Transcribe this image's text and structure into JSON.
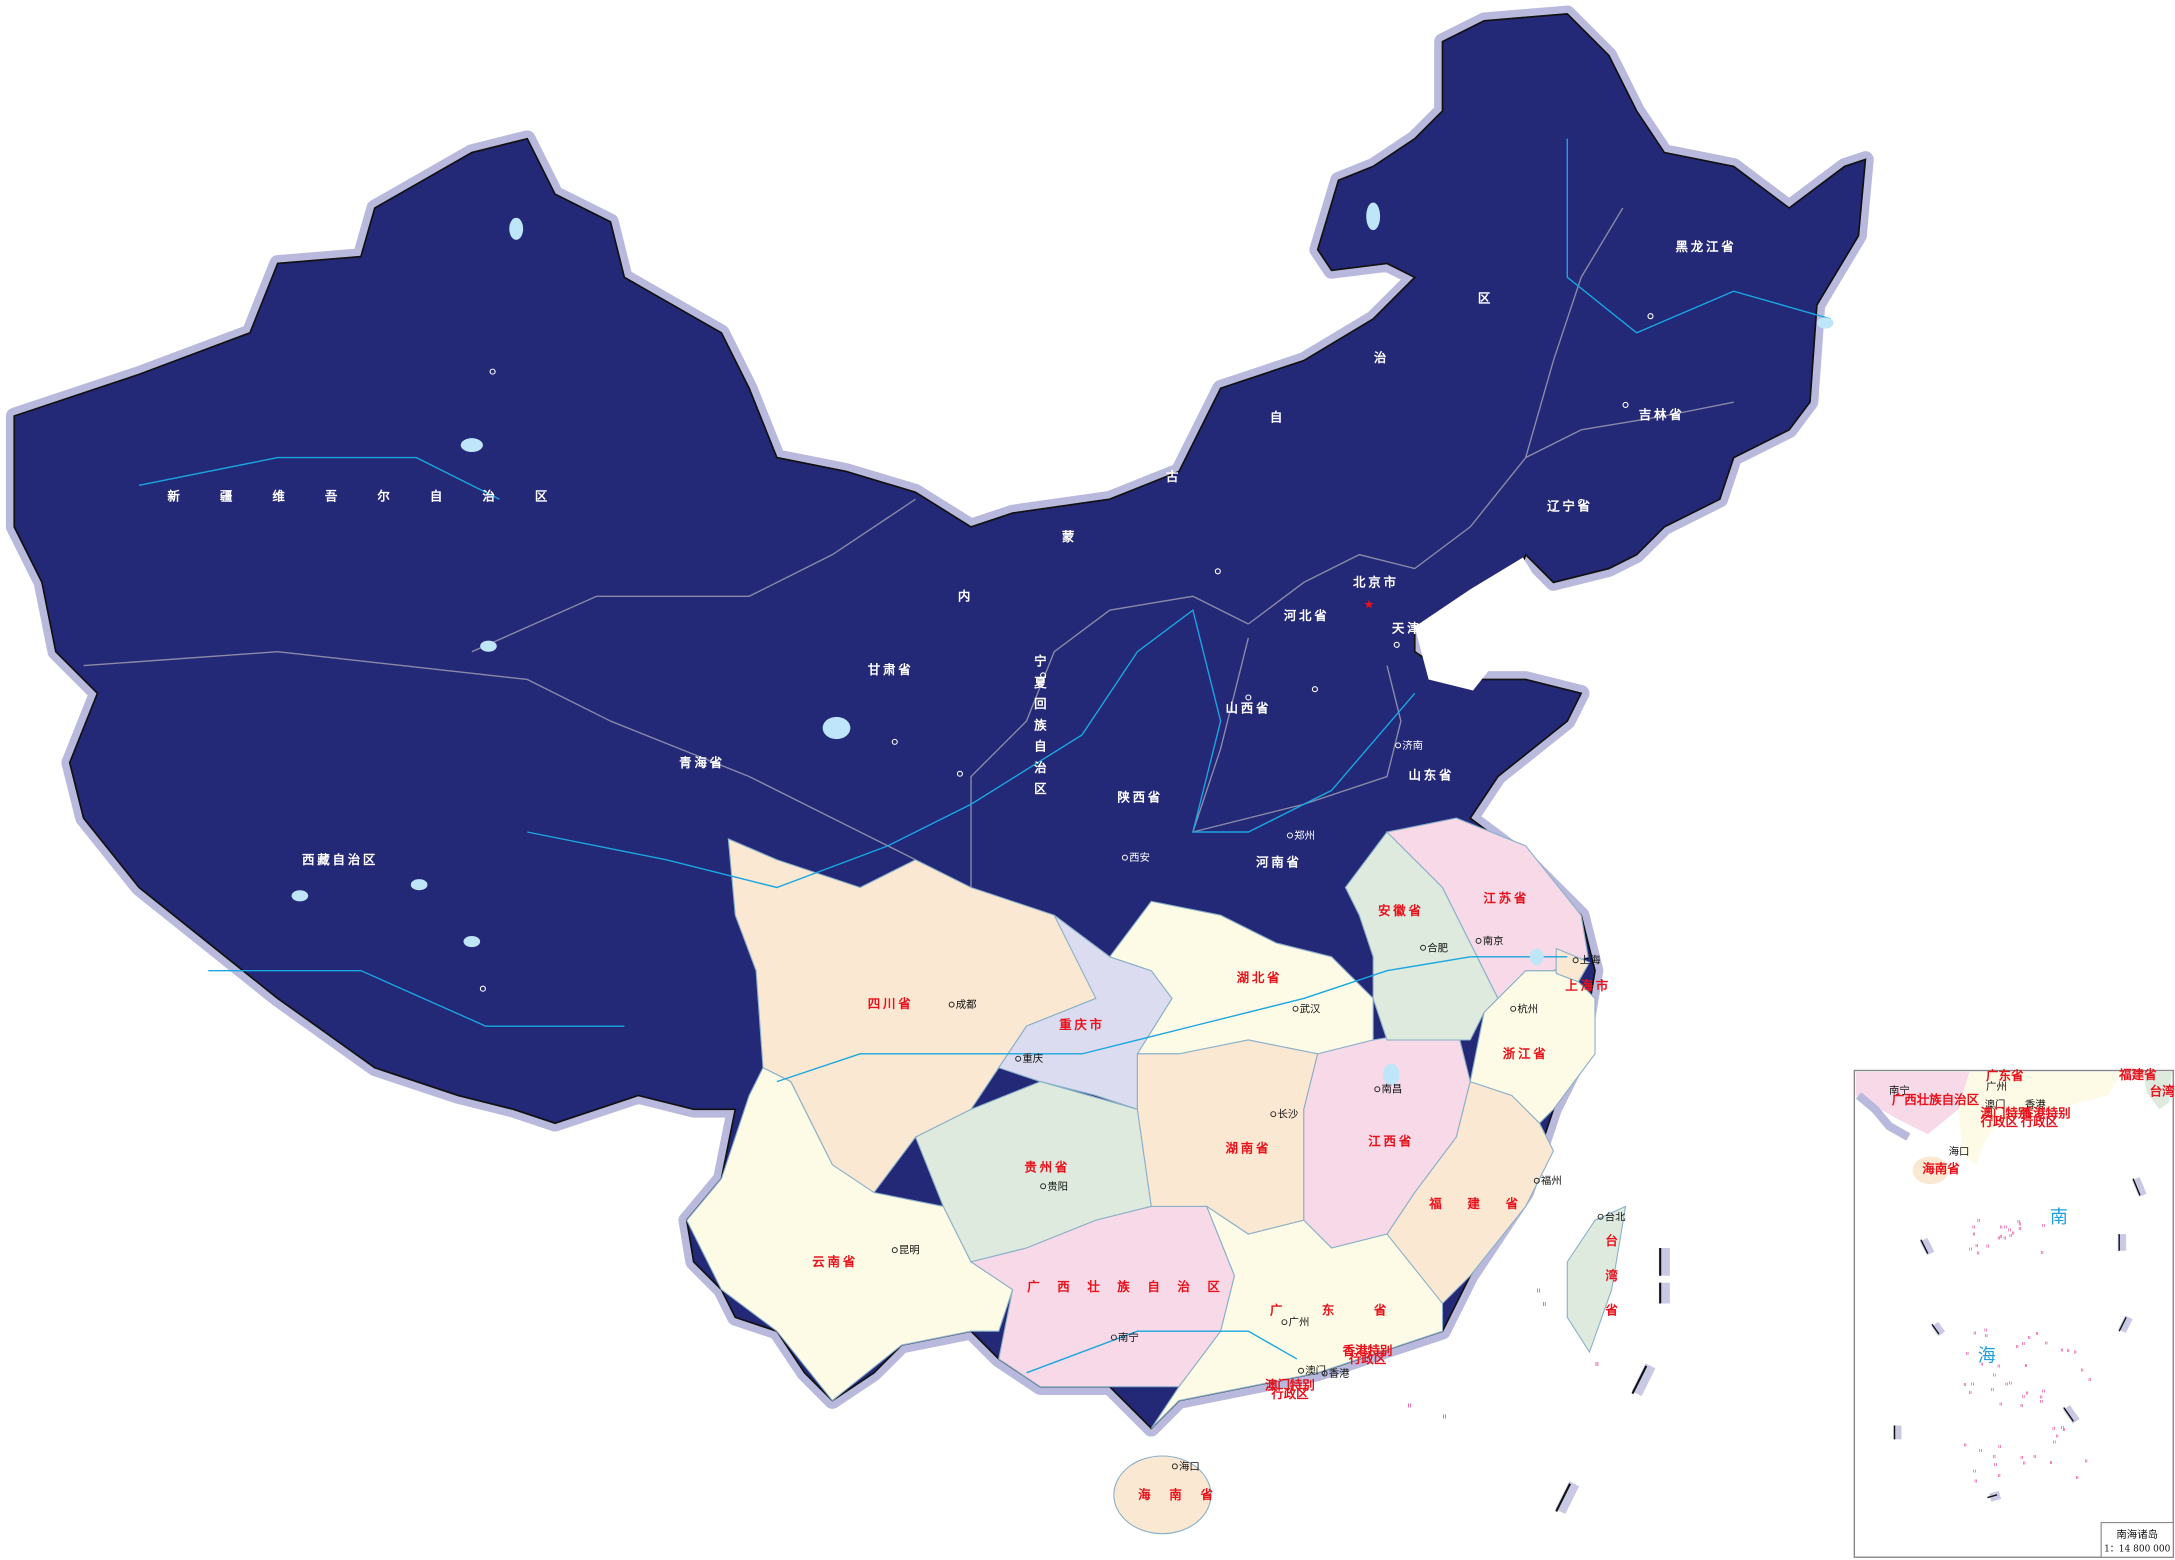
{
  "colors": {
    "north": "#232877",
    "glow": "#b9b9dd",
    "peach": "#fbe8d2",
    "cream": "#fdfbe6",
    "green": "#dfeadf",
    "pink": "#f7d9e7",
    "lavender": "#dcdcf0",
    "water": "#bfe6f8",
    "river": "#1aa6e0",
    "label_red": "#e8121c",
    "capital_star": "#e8121c",
    "island_marks": "#e0107a"
  },
  "provinces": [
    {
      "name": "新疆维吾尔自治区",
      "region": "north"
    },
    {
      "name": "西藏自治区",
      "region": "north"
    },
    {
      "name": "青海省",
      "region": "north"
    },
    {
      "name": "甘肃省",
      "region": "north"
    },
    {
      "name": "内蒙古自治区",
      "region": "north"
    },
    {
      "name": "黑龙江省",
      "region": "north"
    },
    {
      "name": "吉林省",
      "region": "north"
    },
    {
      "name": "辽宁省",
      "region": "north"
    },
    {
      "name": "北京市",
      "region": "north"
    },
    {
      "name": "天津市",
      "region": "north"
    },
    {
      "name": "河北省",
      "region": "north"
    },
    {
      "name": "山西省",
      "region": "north"
    },
    {
      "name": "陕西省",
      "region": "north"
    },
    {
      "name": "宁夏回族自治区",
      "region": "north"
    },
    {
      "name": "河南省",
      "region": "north"
    },
    {
      "name": "山东省",
      "region": "north"
    },
    {
      "name": "江苏省",
      "region": "south"
    },
    {
      "name": "安徽省",
      "region": "south"
    },
    {
      "name": "上海市",
      "region": "south"
    },
    {
      "name": "四川省",
      "region": "south"
    },
    {
      "name": "重庆市",
      "region": "south"
    },
    {
      "name": "湖北省",
      "region": "south"
    },
    {
      "name": "湖南省",
      "region": "south"
    },
    {
      "name": "江西省",
      "region": "south"
    },
    {
      "name": "浙江省",
      "region": "south"
    },
    {
      "name": "福建省",
      "region": "south"
    },
    {
      "name": "贵州省",
      "region": "south"
    },
    {
      "name": "云南省",
      "region": "south"
    },
    {
      "name": "广西壮族自治区",
      "region": "south"
    },
    {
      "name": "广东省",
      "region": "south"
    },
    {
      "name": "海南省",
      "region": "south"
    },
    {
      "name": "台湾省",
      "region": "south"
    },
    {
      "name": "香港特别行政区",
      "region": "south"
    },
    {
      "name": "澳门特别行政区",
      "region": "south"
    }
  ],
  "cities": [
    {
      "name": "济南",
      "region": "north"
    },
    {
      "name": "郑州",
      "region": "north"
    },
    {
      "name": "西安",
      "region": "north"
    },
    {
      "name": "成都",
      "region": "south"
    },
    {
      "name": "重庆",
      "region": "south"
    },
    {
      "name": "武汉",
      "region": "south"
    },
    {
      "name": "长沙",
      "region": "south"
    },
    {
      "name": "南昌",
      "region": "south"
    },
    {
      "name": "杭州",
      "region": "south"
    },
    {
      "name": "南京",
      "region": "south"
    },
    {
      "name": "合肥",
      "region": "south"
    },
    {
      "name": "上海",
      "region": "south"
    },
    {
      "name": "福州",
      "region": "south"
    },
    {
      "name": "贵阳",
      "region": "south"
    },
    {
      "name": "昆明",
      "region": "south"
    },
    {
      "name": "南宁",
      "region": "south"
    },
    {
      "name": "广州",
      "region": "south"
    },
    {
      "name": "澳门",
      "region": "south"
    },
    {
      "name": "香港",
      "region": "south"
    },
    {
      "name": "海口",
      "region": "south"
    },
    {
      "name": "台北",
      "region": "south"
    }
  ],
  "inset": {
    "title": "南海诸岛",
    "scale": "1：14 800 000",
    "sea_label_1": "南",
    "sea_label_2": "海",
    "labels": [
      "南宁",
      "广西壮族自治区",
      "广东省",
      "广州",
      "澳门",
      "香港",
      "澳门特别行政区",
      "香港特别行政区",
      "海口",
      "海南省",
      "福建省",
      "台湾省"
    ]
  }
}
